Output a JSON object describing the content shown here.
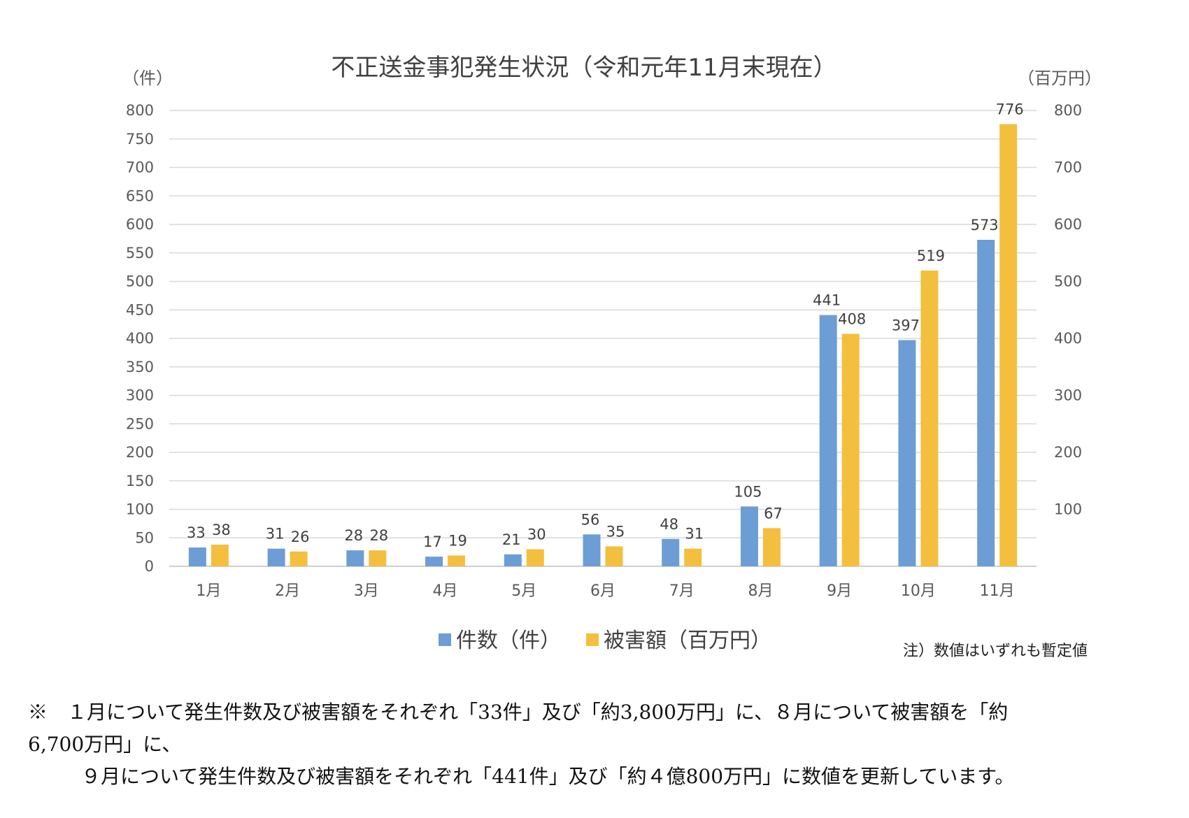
{
  "chart_data": {
    "type": "bar",
    "title": "不正送金事犯発生状況（令和元年11月末現在）",
    "y_left_unit": "（件）",
    "y_right_unit": "（百万円）",
    "y_left_range": [
      0,
      800
    ],
    "y_left_ticks": [
      "0",
      "50",
      "100",
      "150",
      "200",
      "250",
      "300",
      "350",
      "400",
      "450",
      "500",
      "550",
      "600",
      "650",
      "700",
      "750",
      "800"
    ],
    "y_right_range": [
      0,
      800
    ],
    "y_right_ticks": [
      "100",
      "200",
      "300",
      "400",
      "500",
      "600",
      "700",
      "800"
    ],
    "grid": true,
    "legend_position": "bottom",
    "categories": [
      "1月",
      "2月",
      "3月",
      "4月",
      "5月",
      "6月",
      "7月",
      "8月",
      "9月",
      "10月",
      "11月"
    ],
    "series": [
      {
        "name": "件数（件）",
        "color": "#6d9dd5",
        "axis": "left",
        "values": [
          33,
          31,
          28,
          17,
          21,
          56,
          48,
          105,
          441,
          397,
          573
        ]
      },
      {
        "name": "被害額（百万円）",
        "color": "#f4bf3e",
        "axis": "right",
        "values": [
          38,
          26,
          28,
          19,
          30,
          35,
          31,
          67,
          408,
          519,
          776
        ]
      }
    ],
    "note": "注）数値はいずれも暫定値"
  },
  "footnote": {
    "line1": "※　１月について発生件数及び被害額をそれぞれ「33件」及び「約3,800万円」に、８月について被害額を「約",
    "line2": "6,700万円」に、",
    "line3": "９月について発生件数及び被害額をそれぞれ「441件」及び「約４億800万円」に数値を更新しています。"
  }
}
